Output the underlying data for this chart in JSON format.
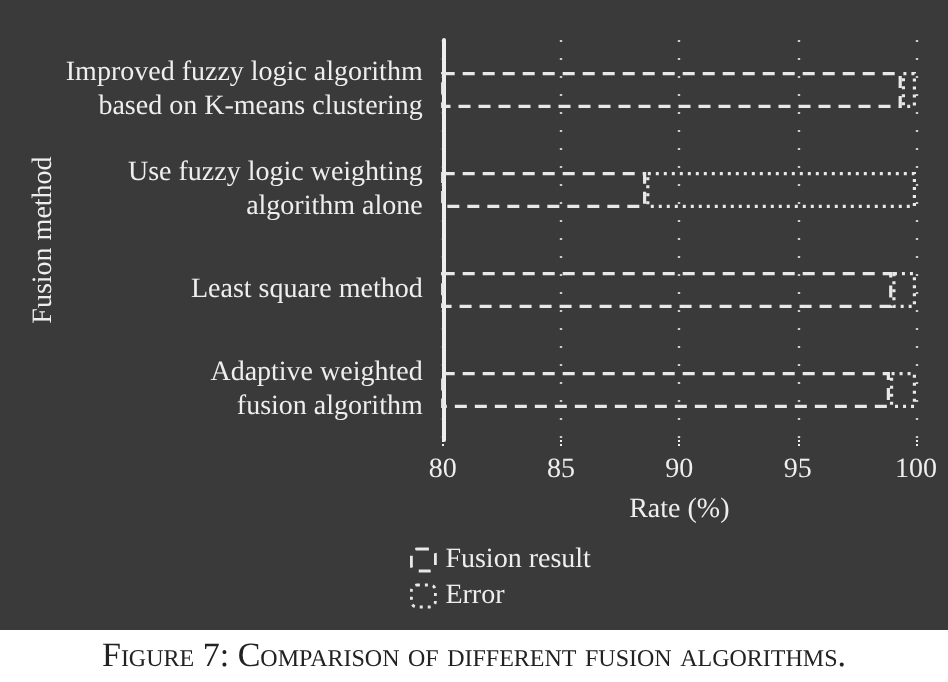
{
  "chart_data": {
    "type": "bar",
    "orientation": "horizontal",
    "categories": [
      "Improved fuzzy logic algorithm\nbased on K-means clustering",
      "Use fuzzy logic weighting\nalgorithm alone",
      "Least square method",
      "Adaptive weighted\nfusion algorithm"
    ],
    "series": [
      {
        "name": "Fusion result",
        "color": "#e8e8e8",
        "line_style": "dashed",
        "values": [
          99.4,
          88.6,
          99.0,
          98.9
        ]
      },
      {
        "name": "Error",
        "color": "#e8e8e8",
        "line_style": "dotted",
        "base": [
          99.4,
          88.6,
          99.0,
          98.9
        ],
        "values": [
          0.6,
          11.4,
          1.0,
          1.1
        ]
      }
    ],
    "xlim": [
      80,
      100
    ],
    "xticks": [
      80,
      85,
      90,
      95,
      100
    ],
    "xlabel": "Rate (%)",
    "ylabel": "Fusion method",
    "grid": "x",
    "legend": "bottom left",
    "annotations": [
      "Figure 7: Comparison of different fusion algorithms."
    ]
  }
}
